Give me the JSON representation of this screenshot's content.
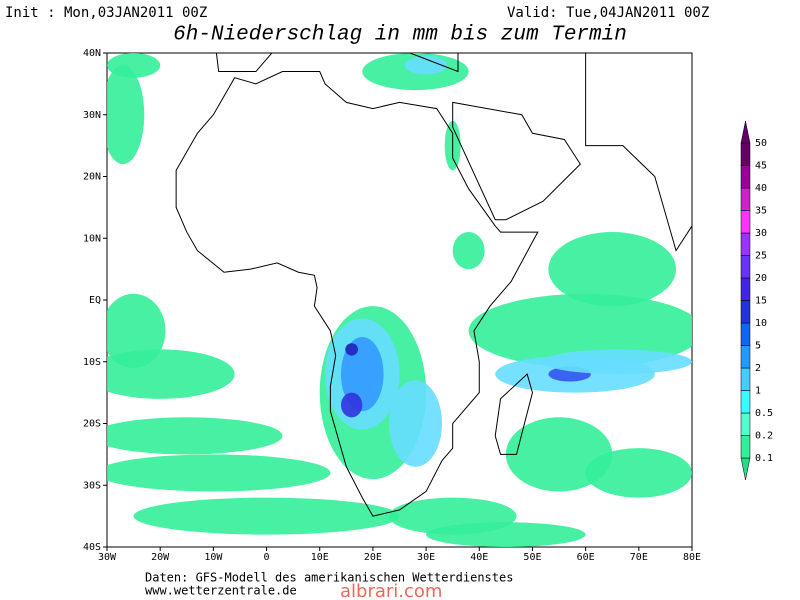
{
  "header": {
    "init": "Init : Mon,03JAN2011 00Z",
    "valid": "Valid: Tue,04JAN2011 00Z",
    "title": "6h-Niederschlag in mm bis zum Termin"
  },
  "map": {
    "lat_labels": [
      "40N",
      "30N",
      "20N",
      "10N",
      "EQ",
      "10S",
      "20S",
      "30S",
      "40S"
    ],
    "lon_labels": [
      "30W",
      "20W",
      "10W",
      "0",
      "10E",
      "20E",
      "30E",
      "40E",
      "50E",
      "60E",
      "70E",
      "80E"
    ]
  },
  "legend": {
    "levels": [
      "0.1",
      "0.2",
      "0.5",
      "1",
      "2",
      "5",
      "10",
      "15",
      "20",
      "25",
      "30",
      "35",
      "40",
      "45",
      "50"
    ]
  },
  "footer": {
    "source": "Daten: GFS-Modell des amerikanischen Wetterdienstes",
    "url": "www.wetterzentrale.de",
    "watermark": "albrari.com"
  }
}
